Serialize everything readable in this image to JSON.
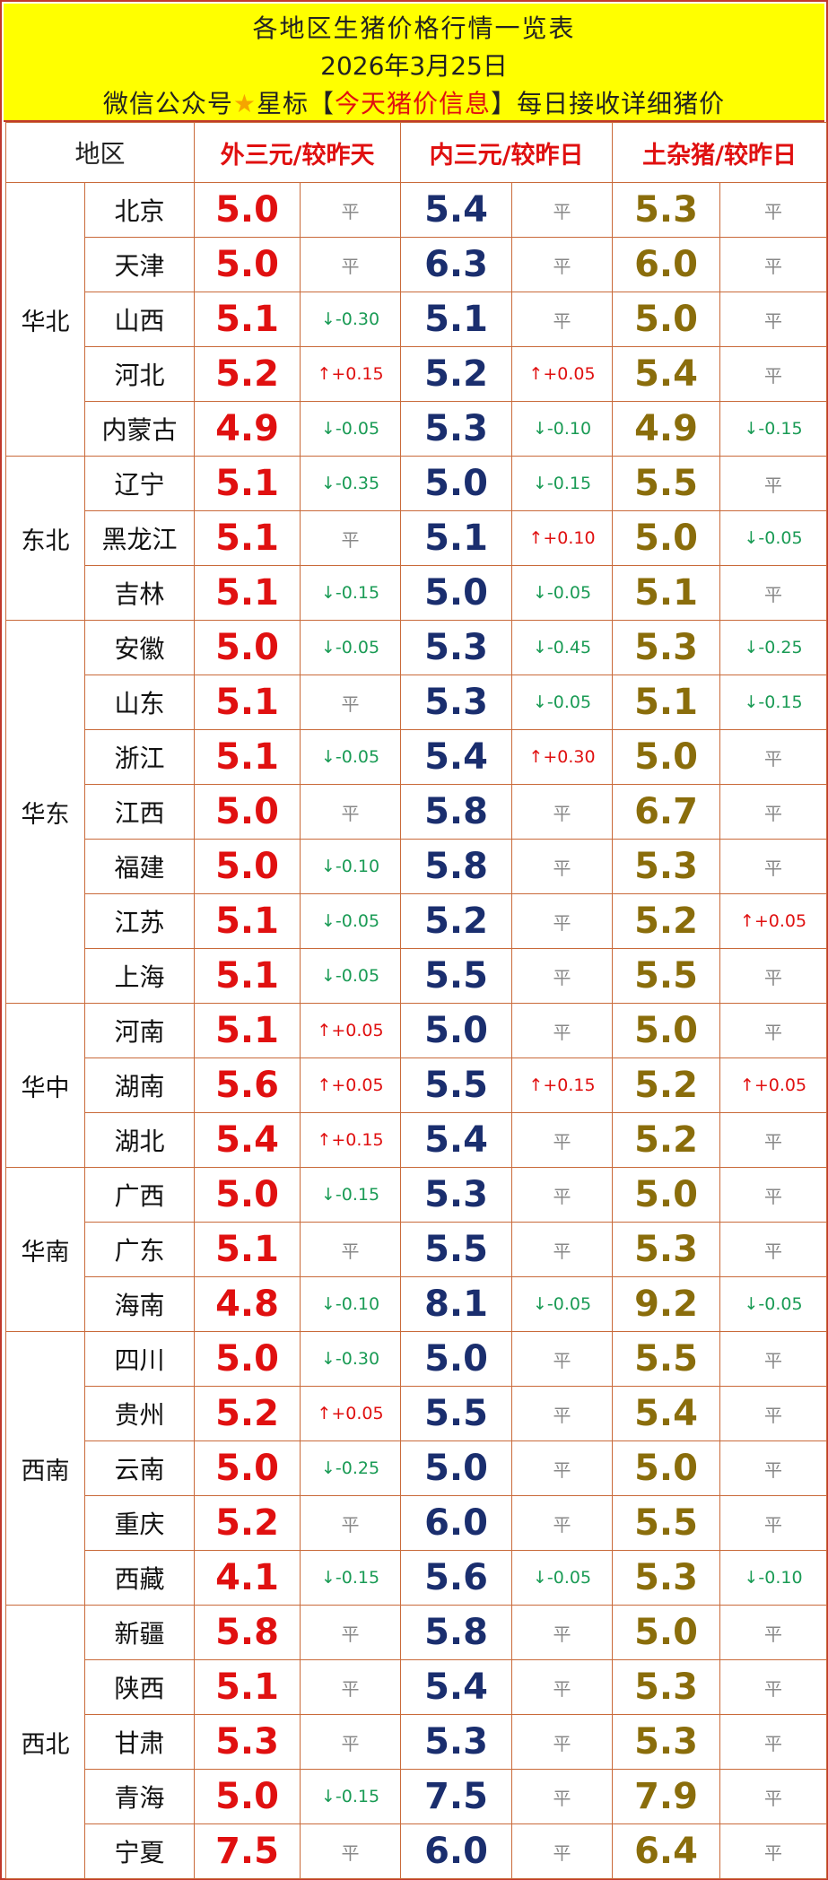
{
  "header": {
    "title": "各地区生猪价格行情一览表",
    "date": "2026年3月25日",
    "subtitle_prefix": "微信公众号",
    "star": "★",
    "subtitle_mid": "星标【",
    "subtitle_highlight": "今天猪价信息",
    "subtitle_suffix": "】每日接收详细猪价"
  },
  "columns": {
    "region": "地区",
    "a": "外三元/较昨天",
    "b": "内三元/较昨日",
    "c": "土杂猪/较昨日"
  },
  "colors": {
    "border": "#c96a3a",
    "banner": "#ffff00",
    "red": "#e01010",
    "navy": "#1a2e6e",
    "olive": "#8a6d0b",
    "green": "#1a9b55"
  },
  "groups": [
    {
      "region": "华北",
      "rows": [
        {
          "prov": "北京",
          "a": "5.0",
          "ac": "平",
          "b": "5.4",
          "bc": "平",
          "c": "5.3",
          "cc": "平"
        },
        {
          "prov": "天津",
          "a": "5.0",
          "ac": "平",
          "b": "6.3",
          "bc": "平",
          "c": "6.0",
          "cc": "平"
        },
        {
          "prov": "山西",
          "a": "5.1",
          "ac": "↓-0.30",
          "b": "5.1",
          "bc": "平",
          "c": "5.0",
          "cc": "平"
        },
        {
          "prov": "河北",
          "a": "5.2",
          "ac": "↑+0.15",
          "b": "5.2",
          "bc": "↑+0.05",
          "c": "5.4",
          "cc": "平"
        },
        {
          "prov": "内蒙古",
          "a": "4.9",
          "ac": "↓-0.05",
          "b": "5.3",
          "bc": "↓-0.10",
          "c": "4.9",
          "cc": "↓-0.15"
        }
      ]
    },
    {
      "region": "东北",
      "rows": [
        {
          "prov": "辽宁",
          "a": "5.1",
          "ac": "↓-0.35",
          "b": "5.0",
          "bc": "↓-0.15",
          "c": "5.5",
          "cc": "平"
        },
        {
          "prov": "黑龙江",
          "a": "5.1",
          "ac": "平",
          "b": "5.1",
          "bc": "↑+0.10",
          "c": "5.0",
          "cc": "↓-0.05"
        },
        {
          "prov": "吉林",
          "a": "5.1",
          "ac": "↓-0.15",
          "b": "5.0",
          "bc": "↓-0.05",
          "c": "5.1",
          "cc": "平"
        }
      ]
    },
    {
      "region": "华东",
      "rows": [
        {
          "prov": "安徽",
          "a": "5.0",
          "ac": "↓-0.05",
          "b": "5.3",
          "bc": "↓-0.45",
          "c": "5.3",
          "cc": "↓-0.25"
        },
        {
          "prov": "山东",
          "a": "5.1",
          "ac": "平",
          "b": "5.3",
          "bc": "↓-0.05",
          "c": "5.1",
          "cc": "↓-0.15"
        },
        {
          "prov": "浙江",
          "a": "5.1",
          "ac": "↓-0.05",
          "b": "5.4",
          "bc": "↑+0.30",
          "c": "5.0",
          "cc": "平"
        },
        {
          "prov": "江西",
          "a": "5.0",
          "ac": "平",
          "b": "5.8",
          "bc": "平",
          "c": "6.7",
          "cc": "平"
        },
        {
          "prov": "福建",
          "a": "5.0",
          "ac": "↓-0.10",
          "b": "5.8",
          "bc": "平",
          "c": "5.3",
          "cc": "平"
        },
        {
          "prov": "江苏",
          "a": "5.1",
          "ac": "↓-0.05",
          "b": "5.2",
          "bc": "平",
          "c": "5.2",
          "cc": "↑+0.05"
        },
        {
          "prov": "上海",
          "a": "5.1",
          "ac": "↓-0.05",
          "b": "5.5",
          "bc": "平",
          "c": "5.5",
          "cc": "平"
        }
      ]
    },
    {
      "region": "华中",
      "rows": [
        {
          "prov": "河南",
          "a": "5.1",
          "ac": "↑+0.05",
          "b": "5.0",
          "bc": "平",
          "c": "5.0",
          "cc": "平"
        },
        {
          "prov": "湖南",
          "a": "5.6",
          "ac": "↑+0.05",
          "b": "5.5",
          "bc": "↑+0.15",
          "c": "5.2",
          "cc": "↑+0.05"
        },
        {
          "prov": "湖北",
          "a": "5.4",
          "ac": "↑+0.15",
          "b": "5.4",
          "bc": "平",
          "c": "5.2",
          "cc": "平"
        }
      ]
    },
    {
      "region": "华南",
      "rows": [
        {
          "prov": "广西",
          "a": "5.0",
          "ac": "↓-0.15",
          "b": "5.3",
          "bc": "平",
          "c": "5.0",
          "cc": "平"
        },
        {
          "prov": "广东",
          "a": "5.1",
          "ac": "平",
          "b": "5.5",
          "bc": "平",
          "c": "5.3",
          "cc": "平"
        },
        {
          "prov": "海南",
          "a": "4.8",
          "ac": "↓-0.10",
          "b": "8.1",
          "bc": "↓-0.05",
          "c": "9.2",
          "cc": "↓-0.05"
        }
      ]
    },
    {
      "region": "西南",
      "rows": [
        {
          "prov": "四川",
          "a": "5.0",
          "ac": "↓-0.30",
          "b": "5.0",
          "bc": "平",
          "c": "5.5",
          "cc": "平"
        },
        {
          "prov": "贵州",
          "a": "5.2",
          "ac": "↑+0.05",
          "b": "5.5",
          "bc": "平",
          "c": "5.4",
          "cc": "平"
        },
        {
          "prov": "云南",
          "a": "5.0",
          "ac": "↓-0.25",
          "b": "5.0",
          "bc": "平",
          "c": "5.0",
          "cc": "平"
        },
        {
          "prov": "重庆",
          "a": "5.2",
          "ac": "平",
          "b": "6.0",
          "bc": "平",
          "c": "5.5",
          "cc": "平"
        },
        {
          "prov": "西藏",
          "a": "4.1",
          "ac": "↓-0.15",
          "b": "5.6",
          "bc": "↓-0.05",
          "c": "5.3",
          "cc": "↓-0.10"
        }
      ]
    },
    {
      "region": "西北",
      "rows": [
        {
          "prov": "新疆",
          "a": "5.8",
          "ac": "平",
          "b": "5.8",
          "bc": "平",
          "c": "5.0",
          "cc": "平"
        },
        {
          "prov": "陕西",
          "a": "5.1",
          "ac": "平",
          "b": "5.4",
          "bc": "平",
          "c": "5.3",
          "cc": "平"
        },
        {
          "prov": "甘肃",
          "a": "5.3",
          "ac": "平",
          "b": "5.3",
          "bc": "平",
          "c": "5.3",
          "cc": "平"
        },
        {
          "prov": "青海",
          "a": "5.0",
          "ac": "↓-0.15",
          "b": "7.5",
          "bc": "平",
          "c": "7.9",
          "cc": "平"
        },
        {
          "prov": "宁夏",
          "a": "7.5",
          "ac": "平",
          "b": "6.0",
          "bc": "平",
          "c": "6.4",
          "cc": "平"
        }
      ]
    }
  ]
}
